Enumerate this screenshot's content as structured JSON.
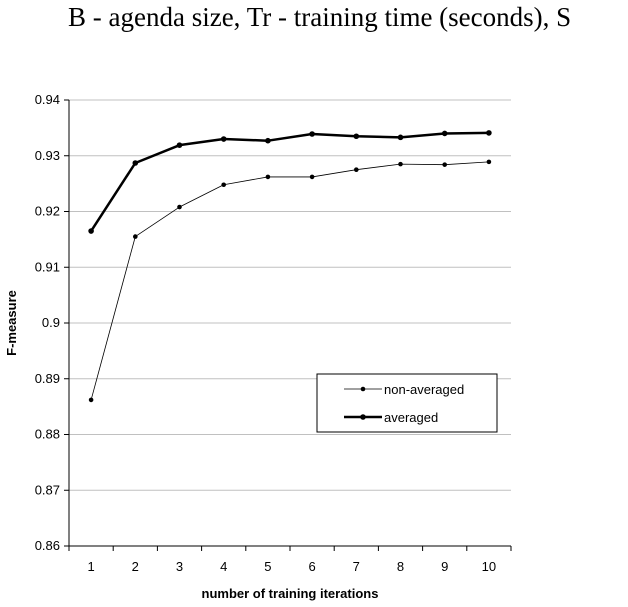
{
  "caption": "B - agenda size, Tr - training time (seconds), S",
  "chart_data": {
    "type": "line",
    "x": [
      1,
      2,
      3,
      4,
      5,
      6,
      7,
      8,
      9,
      10
    ],
    "series": [
      {
        "name": "non-averaged",
        "values": [
          0.8862,
          0.9155,
          0.9208,
          0.9248,
          0.9262,
          0.9262,
          0.9275,
          0.9285,
          0.9284,
          0.9289
        ],
        "line_weight": "thin"
      },
      {
        "name": "averaged",
        "values": [
          0.9165,
          0.9287,
          0.9319,
          0.933,
          0.9327,
          0.9339,
          0.9335,
          0.9333,
          0.934,
          0.9341
        ],
        "line_weight": "thick"
      }
    ],
    "xlabel": "number of training iterations",
    "ylabel": "F-measure",
    "ylim": [
      0.86,
      0.94
    ],
    "yticks": [
      "0.86",
      "0.87",
      "0.88",
      "0.89",
      "0.9",
      "0.91",
      "0.92",
      "0.93",
      "0.94"
    ],
    "xticks": [
      "1",
      "2",
      "3",
      "4",
      "5",
      "6",
      "7",
      "8",
      "9",
      "10"
    ],
    "grid": "horizontal",
    "legend_position": "lower-right",
    "colors": {
      "lines": "#000000",
      "grid": "#c0c0c0"
    }
  }
}
